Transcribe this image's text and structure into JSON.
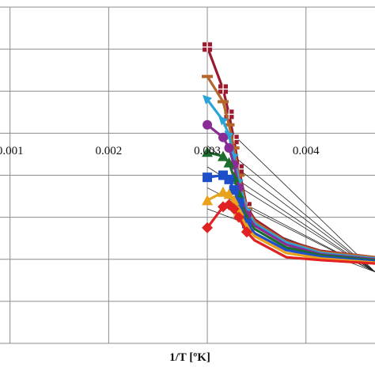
{
  "chart_data": {
    "type": "line",
    "title": "",
    "xlabel": "1/T [ºK]",
    "ylabel": "",
    "xlim": [
      0.0,
      0.0047
    ],
    "ylim": [
      0,
      8
    ],
    "x_ticks": [
      0.001,
      0.002,
      0.003,
      0.004
    ],
    "x_tick_labels": [
      "0.001",
      "0.002",
      "0.003",
      "0.004"
    ],
    "grid": true,
    "legend": "none",
    "series": [
      {
        "color": "#9a1b30",
        "marker": "square-cross",
        "points": [
          [
            0.003,
            7.05
          ],
          [
            0.00316,
            6.05
          ],
          [
            0.00322,
            5.45
          ],
          [
            0.00327,
            4.85
          ],
          [
            0.00332,
            4.15
          ],
          [
            0.0034,
            3.25
          ],
          [
            0.00348,
            2.95
          ],
          [
            0.0038,
            2.45
          ],
          [
            0.00415,
            2.2
          ],
          [
            0.0047,
            2.05
          ]
        ]
      },
      {
        "color": "#b5652a",
        "marker": "dash",
        "points": [
          [
            0.003,
            6.35
          ],
          [
            0.00316,
            5.75
          ],
          [
            0.00322,
            5.2
          ],
          [
            0.00327,
            4.65
          ],
          [
            0.00332,
            4.0
          ],
          [
            0.0034,
            3.2
          ],
          [
            0.00348,
            2.9
          ],
          [
            0.0038,
            2.42
          ],
          [
            0.00415,
            2.18
          ],
          [
            0.0047,
            2.05
          ]
        ]
      },
      {
        "color": "#2aa4d8",
        "marker": "arrow",
        "points": [
          [
            0.003,
            5.8
          ],
          [
            0.00316,
            5.3
          ],
          [
            0.00322,
            4.95
          ],
          [
            0.00327,
            4.45
          ],
          [
            0.00332,
            3.85
          ],
          [
            0.0034,
            3.15
          ],
          [
            0.00348,
            2.85
          ],
          [
            0.0038,
            2.4
          ],
          [
            0.00415,
            2.15
          ],
          [
            0.0047,
            2.02
          ]
        ]
      },
      {
        "color": "#8a2c96",
        "marker": "circle",
        "points": [
          [
            0.003,
            5.2
          ],
          [
            0.00316,
            4.9
          ],
          [
            0.00322,
            4.65
          ],
          [
            0.00327,
            4.25
          ],
          [
            0.00332,
            3.7
          ],
          [
            0.0034,
            3.05
          ],
          [
            0.00348,
            2.8
          ],
          [
            0.0038,
            2.35
          ],
          [
            0.00415,
            2.12
          ],
          [
            0.0047,
            2.0
          ]
        ]
      },
      {
        "color": "#1d6e2e",
        "marker": "triangle",
        "points": [
          [
            0.003,
            4.55
          ],
          [
            0.00316,
            4.45
          ],
          [
            0.00322,
            4.3
          ],
          [
            0.00327,
            3.95
          ],
          [
            0.00332,
            3.55
          ],
          [
            0.0034,
            2.95
          ],
          [
            0.00348,
            2.72
          ],
          [
            0.0038,
            2.28
          ],
          [
            0.00415,
            2.1
          ],
          [
            0.0047,
            1.98
          ]
        ]
      },
      {
        "color": "#1f4fc8",
        "marker": "square",
        "points": [
          [
            0.003,
            3.95
          ],
          [
            0.00316,
            4.0
          ],
          [
            0.00322,
            3.9
          ],
          [
            0.00327,
            3.65
          ],
          [
            0.00332,
            3.35
          ],
          [
            0.0034,
            2.85
          ],
          [
            0.00348,
            2.62
          ],
          [
            0.0038,
            2.22
          ],
          [
            0.00415,
            2.06
          ],
          [
            0.0047,
            1.95
          ]
        ]
      },
      {
        "color": "#e8a21b",
        "marker": "triangle",
        "points": [
          [
            0.003,
            3.4
          ],
          [
            0.00316,
            3.6
          ],
          [
            0.00322,
            3.55
          ],
          [
            0.00327,
            3.4
          ],
          [
            0.00332,
            3.15
          ],
          [
            0.0034,
            2.75
          ],
          [
            0.00348,
            2.55
          ],
          [
            0.0038,
            2.15
          ],
          [
            0.00415,
            2.02
          ],
          [
            0.0047,
            1.92
          ]
        ]
      },
      {
        "color": "#e02222",
        "marker": "diamond",
        "points": [
          [
            0.003,
            2.75
          ],
          [
            0.00316,
            3.25
          ],
          [
            0.00322,
            3.3
          ],
          [
            0.00327,
            3.2
          ],
          [
            0.00332,
            3.0
          ],
          [
            0.0034,
            2.65
          ],
          [
            0.00348,
            2.45
          ],
          [
            0.0038,
            2.05
          ],
          [
            0.00415,
            1.98
          ],
          [
            0.0047,
            1.9
          ]
        ]
      }
    ],
    "reference_lines": [
      {
        "color": "#222222",
        "points": [
          [
            0.00327,
            4.95
          ],
          [
            0.0047,
            1.7
          ]
        ]
      },
      {
        "color": "#222222",
        "points": [
          [
            0.00327,
            4.45
          ],
          [
            0.0047,
            1.7
          ]
        ]
      },
      {
        "color": "#222222",
        "points": [
          [
            0.00327,
            3.95
          ],
          [
            0.0047,
            1.7
          ]
        ]
      },
      {
        "color": "#222222",
        "points": [
          [
            0.00327,
            3.45
          ],
          [
            0.0047,
            1.7
          ]
        ]
      },
      {
        "color": "#222222",
        "points": [
          [
            0.003,
            4.7
          ],
          [
            0.0047,
            1.7
          ]
        ]
      },
      {
        "color": "#222222",
        "points": [
          [
            0.003,
            4.2
          ],
          [
            0.0047,
            1.7
          ]
        ]
      },
      {
        "color": "#222222",
        "points": [
          [
            0.003,
            3.7
          ],
          [
            0.0047,
            1.7
          ]
        ]
      },
      {
        "color": "#222222",
        "points": [
          [
            0.003,
            3.2
          ],
          [
            0.0047,
            1.7
          ]
        ]
      }
    ]
  }
}
